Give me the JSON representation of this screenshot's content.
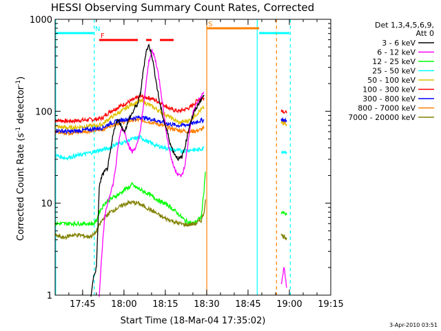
{
  "chart_data": {
    "type": "line",
    "title": "HESSI Observing Summary Count Rates, Corrected",
    "xlabel": "Start Time (18-Mar-04 17:35:02)",
    "ylabel": "Corrected Count Rate (s⁻¹ detector⁻¹)",
    "ylabel_parts": [
      "Corrected Count Rate (s",
      "-1",
      " detector",
      "-1",
      ")"
    ],
    "yscale": "log",
    "xlim": [
      "17:35:02",
      "19:15:00"
    ],
    "ylim": [
      1,
      1000
    ],
    "x_ticks": [
      {
        "t": "17:45",
        "m": 9.97
      },
      {
        "t": "18:00",
        "m": 24.97
      },
      {
        "t": "18:15",
        "m": 39.97
      },
      {
        "t": "18:30",
        "m": 54.97
      },
      {
        "t": "18:45",
        "m": 69.97
      },
      {
        "t": "19:00",
        "m": 84.97
      },
      {
        "t": "19:15",
        "m": 99.97
      }
    ],
    "y_ticks": [
      {
        "v": 1,
        "label": "1"
      },
      {
        "v": 10,
        "label": "10"
      },
      {
        "v": 100,
        "label": "100"
      },
      {
        "v": 1000,
        "label": "1000"
      }
    ],
    "grid": false,
    "legend": {
      "position": "right",
      "header": [
        "Det 1,3,4,5,6,9,",
        "Att 0"
      ],
      "entries": [
        {
          "name": "3 - 6 keV",
          "color": "#000000"
        },
        {
          "name": "6 - 12 keV",
          "color": "#ff00ff"
        },
        {
          "name": "12 - 25 keV",
          "color": "#00ff00"
        },
        {
          "name": "25 - 50 keV",
          "color": "#00ffff"
        },
        {
          "name": "50 - 100 keV",
          "color": "#e0c000"
        },
        {
          "name": "100 - 300 keV",
          "color": "#ff0000"
        },
        {
          "name": "300 - 800 keV",
          "color": "#0000ff"
        },
        {
          "name": "800 - 7000 keV",
          "color": "#ff8000"
        },
        {
          "name": "7000 - 20000 keV",
          "color": "#808000"
        }
      ]
    },
    "series": [
      {
        "name": "100 - 300 keV",
        "color": "#ff0000",
        "segments": [
          [
            [
              0,
              80
            ],
            [
              5,
              78
            ],
            [
              10,
              80
            ],
            [
              15,
              82
            ],
            [
              17,
              84
            ],
            [
              20,
              100
            ],
            [
              24,
              115
            ],
            [
              28,
              132
            ],
            [
              31,
              145
            ],
            [
              35,
              138
            ],
            [
              39,
              120
            ],
            [
              42,
              105
            ],
            [
              45,
              100
            ],
            [
              49,
              110
            ],
            [
              52,
              135
            ],
            [
              54,
              140
            ]
          ],
          [
            [
              82,
              104
            ],
            [
              84,
              95
            ]
          ]
        ]
      },
      {
        "name": "800 - 7000 keV",
        "color": "#ff8000",
        "segments": [
          [
            [
              0,
              60
            ],
            [
              5,
              58
            ],
            [
              10,
              60
            ],
            [
              15,
              62
            ],
            [
              17,
              63
            ],
            [
              20,
              70
            ],
            [
              24,
              76
            ],
            [
              28,
              80
            ],
            [
              31,
              80
            ],
            [
              35,
              76
            ],
            [
              39,
              70
            ],
            [
              42,
              65
            ],
            [
              45,
              62
            ],
            [
              49,
              60
            ],
            [
              52,
              62
            ],
            [
              54,
              65
            ]
          ],
          [
            [
              82,
              78
            ],
            [
              84,
              72
            ]
          ]
        ]
      },
      {
        "name": "50 - 100 keV",
        "color": "#e0c000",
        "segments": [
          [
            [
              0,
              68
            ],
            [
              5,
              66
            ],
            [
              10,
              68
            ],
            [
              15,
              70
            ],
            [
              17,
              72
            ],
            [
              20,
              85
            ],
            [
              24,
              100
            ],
            [
              28,
              120
            ],
            [
              31,
              130
            ],
            [
              34,
              118
            ],
            [
              38,
              100
            ],
            [
              42,
              85
            ],
            [
              45,
              75
            ],
            [
              49,
              80
            ],
            [
              52,
              98
            ],
            [
              54,
              110
            ]
          ],
          [
            [
              82,
              76
            ],
            [
              84,
              70
            ]
          ]
        ]
      },
      {
        "name": "300 - 800 keV",
        "color": "#0000ff",
        "segments": [
          [
            [
              0,
              62
            ],
            [
              5,
              60
            ],
            [
              10,
              62
            ],
            [
              15,
              65
            ],
            [
              17,
              66
            ],
            [
              20,
              74
            ],
            [
              24,
              80
            ],
            [
              28,
              84
            ],
            [
              31,
              86
            ],
            [
              35,
              82
            ],
            [
              39,
              76
            ],
            [
              42,
              72
            ],
            [
              45,
              70
            ],
            [
              49,
              72
            ],
            [
              52,
              78
            ],
            [
              54,
              80
            ]
          ],
          [
            [
              82,
              82
            ],
            [
              84,
              78
            ]
          ]
        ]
      },
      {
        "name": "25 - 50 keV",
        "color": "#00ffff",
        "segments": [
          [
            [
              0,
              33
            ],
            [
              4,
              31
            ],
            [
              8,
              33
            ],
            [
              12,
              35
            ],
            [
              15,
              37
            ],
            [
              17,
              38
            ],
            [
              20,
              40
            ],
            [
              22,
              44
            ],
            [
              25,
              46
            ],
            [
              28,
              50
            ],
            [
              31,
              52
            ],
            [
              34,
              46
            ],
            [
              37,
              42
            ],
            [
              40,
              40
            ],
            [
              43,
              38
            ],
            [
              46,
              37
            ],
            [
              49,
              38
            ],
            [
              52,
              38
            ],
            [
              54,
              40
            ]
          ],
          [
            [
              82,
              37
            ],
            [
              84,
              36
            ]
          ]
        ]
      },
      {
        "name": "12 - 25 keV",
        "color": "#00ff00",
        "segments": [
          [
            [
              0,
              6
            ],
            [
              3,
              6
            ],
            [
              6,
              6
            ],
            [
              9,
              6
            ],
            [
              12,
              6
            ],
            [
              14,
              6
            ],
            [
              15,
              6.5
            ],
            [
              16,
              8
            ],
            [
              18,
              10
            ],
            [
              20,
              11
            ],
            [
              22,
              12
            ],
            [
              24,
              13
            ],
            [
              25,
              14
            ],
            [
              27,
              15
            ],
            [
              28,
              16
            ],
            [
              29,
              15
            ],
            [
              31,
              14
            ],
            [
              33,
              13
            ],
            [
              35,
              12
            ],
            [
              38,
              10.5
            ],
            [
              41,
              9.5
            ],
            [
              44,
              8
            ],
            [
              47,
              6.5
            ],
            [
              50,
              6
            ],
            [
              53,
              7
            ],
            [
              54,
              14
            ],
            [
              54.5,
              22
            ]
          ],
          [
            [
              82,
              8
            ],
            [
              84,
              7.5
            ]
          ]
        ]
      },
      {
        "name": "7000 - 20000 keV",
        "color": "#808000",
        "segments": [
          [
            [
              0,
              4.5
            ],
            [
              3,
              4.2
            ],
            [
              6,
              4.5
            ],
            [
              9,
              4.5
            ],
            [
              12,
              4.3
            ],
            [
              14,
              4.5
            ],
            [
              15,
              5
            ],
            [
              17,
              6.5
            ],
            [
              20,
              8
            ],
            [
              23,
              9
            ],
            [
              26,
              10
            ],
            [
              28,
              10.2
            ],
            [
              30,
              10
            ],
            [
              33,
              9
            ],
            [
              36,
              8
            ],
            [
              39,
              7
            ],
            [
              42,
              6.5
            ],
            [
              45,
              6
            ],
            [
              48,
              5.8
            ],
            [
              51,
              6
            ],
            [
              53,
              6.5
            ],
            [
              54,
              8
            ],
            [
              54.5,
              11
            ]
          ],
          [
            [
              82,
              4.5
            ],
            [
              84,
              4.2
            ]
          ]
        ]
      },
      {
        "name": "6 - 12 keV",
        "color": "#ff00ff",
        "segments": [
          [
            [
              16,
              1
            ],
            [
              17,
              3
            ],
            [
              18,
              7
            ],
            [
              19,
              10
            ],
            [
              20,
              13
            ],
            [
              21,
              16
            ],
            [
              22,
              25
            ],
            [
              23,
              45
            ],
            [
              24,
              65
            ],
            [
              25,
              62
            ],
            [
              26,
              50
            ],
            [
              27,
              40
            ],
            [
              28,
              36
            ],
            [
              29,
              40
            ],
            [
              30,
              45
            ],
            [
              31,
              65
            ],
            [
              32,
              110
            ],
            [
              33,
              200
            ],
            [
              34,
              350
            ],
            [
              35,
              450
            ],
            [
              36,
              400
            ],
            [
              37,
              300
            ],
            [
              38,
              200
            ],
            [
              39,
              120
            ],
            [
              40,
              70
            ],
            [
              41,
              45
            ],
            [
              42,
              32
            ],
            [
              43,
              25
            ],
            [
              44,
              22
            ],
            [
              45,
              20
            ],
            [
              46,
              20
            ],
            [
              47,
              25
            ],
            [
              48,
              40
            ],
            [
              49,
              70
            ],
            [
              50,
              95
            ],
            [
              51,
              115
            ],
            [
              52,
              130
            ],
            [
              53,
              145
            ],
            [
              54,
              160
            ]
          ],
          [
            [
              82,
              1.3
            ],
            [
              83,
              2
            ],
            [
              84,
              1.2
            ]
          ]
        ]
      },
      {
        "name": "3 - 6 keV",
        "color": "#000000",
        "segments": [
          [
            [
              13,
              1
            ],
            [
              14,
              1.6
            ],
            [
              15,
              2
            ],
            [
              16,
              15
            ],
            [
              17,
              20
            ],
            [
              18,
              22
            ],
            [
              19,
              24
            ],
            [
              20,
              35
            ],
            [
              21,
              55
            ],
            [
              22,
              75
            ],
            [
              23,
              80
            ],
            [
              24,
              70
            ],
            [
              25,
              60
            ],
            [
              26,
              70
            ],
            [
              27,
              85
            ],
            [
              28,
              95
            ],
            [
              29,
              110
            ],
            [
              30,
              120
            ],
            [
              31,
              160
            ],
            [
              32,
              280
            ],
            [
              33,
              450
            ],
            [
              34,
              520
            ],
            [
              35,
              420
            ],
            [
              36,
              280
            ],
            [
              37,
              180
            ],
            [
              38,
              120
            ],
            [
              39,
              90
            ],
            [
              40,
              70
            ],
            [
              41,
              55
            ],
            [
              42,
              42
            ],
            [
              43,
              36
            ],
            [
              44,
              32
            ],
            [
              45,
              30
            ],
            [
              46,
              32
            ],
            [
              47,
              40
            ],
            [
              48,
              55
            ],
            [
              49,
              75
            ],
            [
              50,
              90
            ],
            [
              51,
              105
            ],
            [
              52,
              120
            ],
            [
              53,
              135
            ],
            [
              54,
              150
            ]
          ]
        ]
      }
    ],
    "flags": [
      {
        "label": "N",
        "color": "#00ffff",
        "segments": [
          [
            0,
            14
          ]
        ],
        "label_at": 14
      },
      {
        "label": "F",
        "color": "#ff0000",
        "segments": [
          [
            16,
            30
          ],
          [
            33,
            35
          ],
          [
            38,
            43
          ]
        ],
        "label_at": 16
      },
      {
        "label": "S",
        "color": "#ff8000",
        "segments": [
          [
            55,
            74
          ]
        ],
        "label_at": 55
      },
      {
        "label": "",
        "color": "#00ffff",
        "segments": [
          [
            74,
            85
          ]
        ],
        "label_at": 74
      }
    ],
    "markers": [
      {
        "m": 14.2,
        "color": "#00ffff",
        "dashed": true
      },
      {
        "m": 55.0,
        "color": "#ff8000",
        "dashed": false
      },
      {
        "m": 73.3,
        "color": "#00ffff",
        "dashed": false
      },
      {
        "m": 80.3,
        "color": "#ff8000",
        "dashed": true
      },
      {
        "m": 85.3,
        "color": "#00ffff",
        "dashed": true
      },
      {
        "m": 0.2,
        "color": "#00ffff",
        "dashed": false
      }
    ],
    "footer_stamp": "3-Apr-2010 03:51"
  }
}
